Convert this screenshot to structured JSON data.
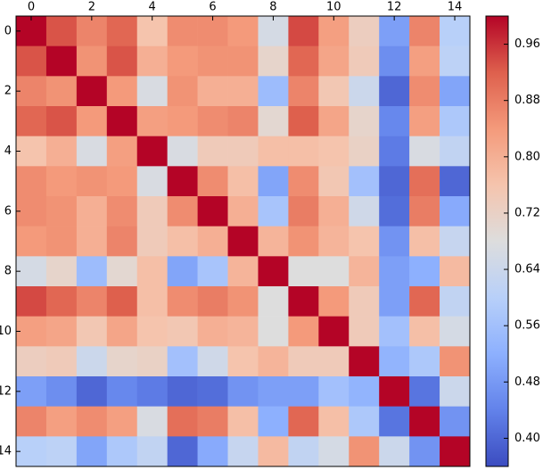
{
  "chart_data": {
    "type": "heatmap",
    "colormap": "coolwarm",
    "values": [
      [
        1.0,
        0.93,
        0.87,
        0.91,
        0.76,
        0.86,
        0.86,
        0.84,
        0.66,
        0.94,
        0.83,
        0.73,
        0.49,
        0.87,
        0.6
      ],
      [
        0.93,
        1.0,
        0.85,
        0.93,
        0.8,
        0.84,
        0.85,
        0.85,
        0.71,
        0.91,
        0.82,
        0.74,
        0.46,
        0.83,
        0.61
      ],
      [
        0.87,
        0.85,
        1.0,
        0.84,
        0.67,
        0.85,
        0.8,
        0.8,
        0.55,
        0.87,
        0.75,
        0.64,
        0.4,
        0.86,
        0.5
      ],
      [
        0.91,
        0.93,
        0.84,
        1.0,
        0.83,
        0.84,
        0.86,
        0.87,
        0.7,
        0.92,
        0.82,
        0.71,
        0.45,
        0.83,
        0.58
      ],
      [
        0.76,
        0.8,
        0.67,
        0.83,
        1.0,
        0.67,
        0.74,
        0.74,
        0.77,
        0.77,
        0.76,
        0.72,
        0.43,
        0.67,
        0.62
      ],
      [
        0.86,
        0.84,
        0.85,
        0.84,
        0.67,
        1.0,
        0.86,
        0.77,
        0.5,
        0.86,
        0.75,
        0.56,
        0.4,
        0.9,
        0.4
      ],
      [
        0.86,
        0.85,
        0.8,
        0.86,
        0.74,
        0.86,
        1.0,
        0.8,
        0.57,
        0.88,
        0.8,
        0.65,
        0.41,
        0.88,
        0.51
      ],
      [
        0.84,
        0.85,
        0.8,
        0.87,
        0.74,
        0.77,
        0.8,
        1.0,
        0.79,
        0.85,
        0.79,
        0.76,
        0.47,
        0.77,
        0.63
      ],
      [
        0.66,
        0.71,
        0.55,
        0.7,
        0.77,
        0.5,
        0.57,
        0.79,
        1.0,
        0.68,
        0.68,
        0.79,
        0.49,
        0.52,
        0.78
      ],
      [
        0.94,
        0.91,
        0.87,
        0.92,
        0.77,
        0.86,
        0.88,
        0.85,
        0.68,
        1.0,
        0.84,
        0.74,
        0.49,
        0.91,
        0.62
      ],
      [
        0.83,
        0.82,
        0.75,
        0.82,
        0.76,
        0.75,
        0.8,
        0.79,
        0.68,
        0.84,
        1.0,
        0.74,
        0.56,
        0.77,
        0.66
      ],
      [
        0.73,
        0.74,
        0.64,
        0.71,
        0.72,
        0.56,
        0.65,
        0.76,
        0.79,
        0.74,
        0.74,
        1.0,
        0.53,
        0.58,
        0.85
      ],
      [
        0.49,
        0.46,
        0.4,
        0.45,
        0.43,
        0.4,
        0.41,
        0.47,
        0.49,
        0.49,
        0.56,
        0.53,
        1.0,
        0.42,
        0.64
      ],
      [
        0.87,
        0.83,
        0.86,
        0.83,
        0.67,
        0.9,
        0.88,
        0.77,
        0.52,
        0.91,
        0.77,
        0.58,
        0.42,
        1.0,
        0.47
      ],
      [
        0.6,
        0.61,
        0.5,
        0.58,
        0.62,
        0.4,
        0.51,
        0.63,
        0.78,
        0.62,
        0.66,
        0.85,
        0.64,
        0.47,
        1.0
      ]
    ],
    "xlim": [
      -0.5,
      14.5
    ],
    "ylim": [
      -0.5,
      14.5
    ],
    "xticks": [
      0,
      2,
      4,
      6,
      8,
      10,
      12,
      14
    ],
    "yticks": [
      0,
      2,
      4,
      6,
      8,
      10,
      12,
      14
    ],
    "clim": [
      0.36,
      1.0
    ],
    "cticks": [
      {
        "value": 0.4,
        "label": "0.40"
      },
      0.48,
      0.56,
      0.64,
      0.72,
      {
        "value": 0.8,
        "label": "0.80"
      },
      0.88,
      0.96
    ]
  }
}
